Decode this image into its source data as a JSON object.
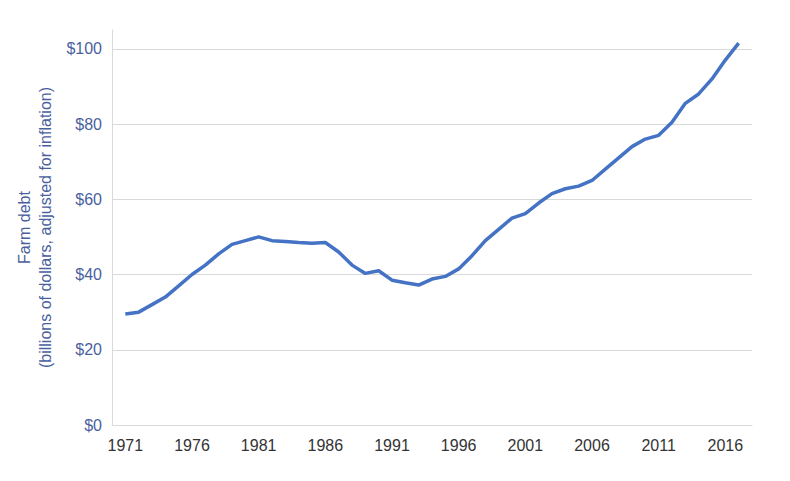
{
  "chart_data": {
    "type": "line",
    "y_label": "Farm debt\n(billions of dollars, adjusted for inflation)",
    "x": [
      1971,
      1972,
      1973,
      1974,
      1975,
      1976,
      1977,
      1978,
      1979,
      1980,
      1981,
      1982,
      1983,
      1984,
      1985,
      1986,
      1987,
      1988,
      1989,
      1990,
      1991,
      1992,
      1993,
      1994,
      1995,
      1996,
      1997,
      1998,
      1999,
      2000,
      2001,
      2002,
      2003,
      2004,
      2005,
      2006,
      2007,
      2008,
      2009,
      2010,
      2011,
      2012,
      2013,
      2014,
      2015,
      2016,
      2017
    ],
    "values": [
      29.5,
      30,
      32,
      34,
      37,
      40,
      42.5,
      45.5,
      48,
      49,
      50,
      49,
      48.8,
      48.5,
      48.3,
      48.5,
      46,
      42.5,
      40.3,
      41,
      38.5,
      37.8,
      37.2,
      38.8,
      39.5,
      41.5,
      45,
      49,
      52,
      55,
      56.2,
      59,
      61.5,
      62.8,
      63.5,
      65,
      68,
      71,
      74,
      76,
      77,
      80.5,
      85.5,
      88,
      92,
      97,
      101.5
    ],
    "color": "#4472c4",
    "xlim": [
      1970,
      2018
    ],
    "xticks": [
      1971,
      1976,
      1981,
      1986,
      1991,
      1996,
      2001,
      2006,
      2011,
      2016
    ],
    "ylim": [
      0,
      105
    ],
    "yticks": [
      {
        "value": 0,
        "label": "$0"
      },
      {
        "value": 20,
        "label": "$20"
      },
      {
        "value": 40,
        "label": "$40"
      },
      {
        "value": 60,
        "label": "$60"
      },
      {
        "value": 80,
        "label": "$80"
      },
      {
        "value": 100,
        "label": "$100"
      }
    ],
    "grid": true
  }
}
